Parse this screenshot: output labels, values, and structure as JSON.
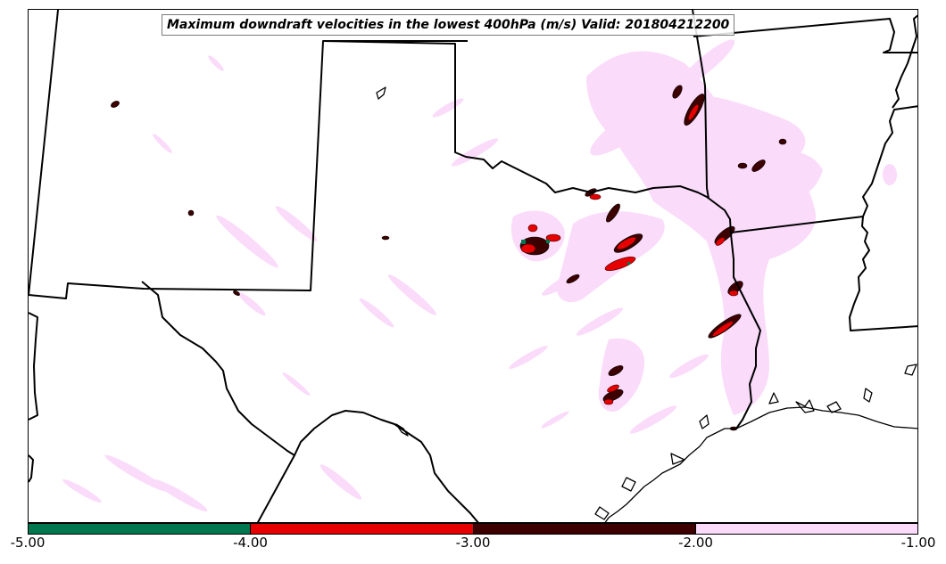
{
  "map": {
    "title": "Maximum downdraft velocities in the lowest 400hPa (m/s) Valid: 201804212200"
  },
  "colorbar": {
    "bins": [
      {
        "from": -5.0,
        "to": -4.0,
        "color": "#00774f"
      },
      {
        "from": -4.0,
        "to": -3.0,
        "color": "#e60000"
      },
      {
        "from": -3.0,
        "to": -2.0,
        "color": "#3d0000"
      },
      {
        "from": -2.0,
        "to": -1.0,
        "color": "#fadbfa"
      }
    ],
    "ticks": [
      "-5.00",
      "-4.00",
      "-3.00",
      "-2.00",
      "-1.00"
    ]
  },
  "colors": {
    "light_downdraft": "#fadbfa",
    "moderate_downdraft": "#3d0000",
    "strong_downdraft": "#e60000",
    "extreme_downdraft": "#00774f",
    "boundaries": "#000000"
  }
}
